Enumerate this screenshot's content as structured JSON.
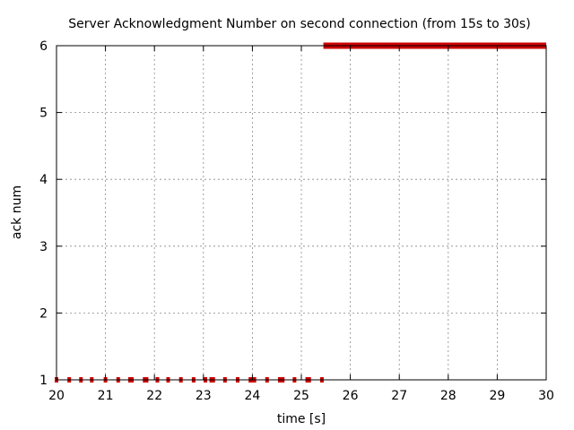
{
  "chart_data": {
    "type": "scatter",
    "title": "Server Acknowledgment Number on second connection (from 15s to 30s)",
    "xlabel": "time [s]",
    "ylabel": "ack num",
    "xlim": [
      20,
      30
    ],
    "ylim": [
      1,
      6
    ],
    "x_ticks": [
      "20",
      "21",
      "22",
      "23",
      "24",
      "25",
      "26",
      "27",
      "28",
      "29",
      "30"
    ],
    "y_ticks": [
      "1",
      "2",
      "3",
      "4",
      "5",
      "6"
    ],
    "grid": true,
    "legend": "none",
    "series": [
      {
        "color": "#cc0000",
        "points": [
          {
            "x": 20.0,
            "y": 1
          },
          {
            "x": 20.26,
            "y": 1
          },
          {
            "x": 20.5,
            "y": 1
          },
          {
            "x": 20.72,
            "y": 1
          },
          {
            "x": 21.0,
            "y": 1
          },
          {
            "x": 21.26,
            "y": 1
          },
          {
            "x": 21.5,
            "y": 1
          },
          {
            "x": 21.54,
            "y": 1
          },
          {
            "x": 21.8,
            "y": 1
          },
          {
            "x": 21.84,
            "y": 1
          },
          {
            "x": 22.06,
            "y": 1
          },
          {
            "x": 22.28,
            "y": 1
          },
          {
            "x": 22.54,
            "y": 1
          },
          {
            "x": 22.8,
            "y": 1
          },
          {
            "x": 23.04,
            "y": 1
          },
          {
            "x": 23.16,
            "y": 1
          },
          {
            "x": 23.2,
            "y": 1
          },
          {
            "x": 23.44,
            "y": 1
          },
          {
            "x": 23.7,
            "y": 1
          },
          {
            "x": 23.96,
            "y": 1
          },
          {
            "x": 24.0,
            "y": 1
          },
          {
            "x": 24.04,
            "y": 1
          },
          {
            "x": 24.3,
            "y": 1
          },
          {
            "x": 24.56,
            "y": 1
          },
          {
            "x": 24.62,
            "y": 1
          },
          {
            "x": 24.86,
            "y": 1
          },
          {
            "x": 25.12,
            "y": 1
          },
          {
            "x": 25.16,
            "y": 1
          },
          {
            "x": 25.42,
            "y": 1
          }
        ]
      },
      {
        "color": "#cc0000",
        "segment": {
          "x_start": 25.45,
          "x_end": 30.0,
          "y": 6
        }
      }
    ]
  }
}
